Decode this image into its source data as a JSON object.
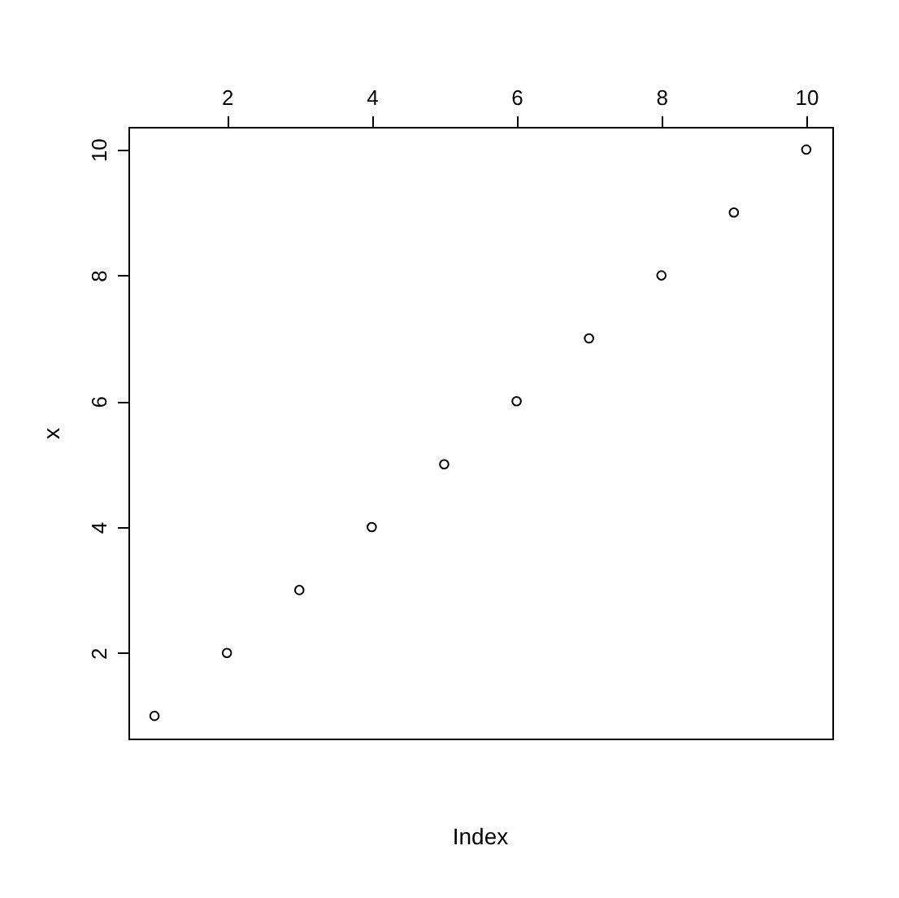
{
  "chart_data": {
    "type": "scatter",
    "xlabel": "Index",
    "ylabel": "x",
    "x": [
      1,
      2,
      3,
      4,
      5,
      6,
      7,
      8,
      9,
      10
    ],
    "series": [
      {
        "color": "#000000",
        "values": [
          1,
          2,
          3,
          4,
          5,
          6,
          7,
          8,
          9,
          10
        ]
      }
    ],
    "xlim": [
      0.64,
      10.36
    ],
    "ylim": [
      0.64,
      10.36
    ],
    "xticks": [
      2,
      4,
      6,
      8,
      10
    ],
    "yticks": [
      2,
      4,
      6,
      8,
      10
    ],
    "grid": false,
    "marker": "circle"
  }
}
